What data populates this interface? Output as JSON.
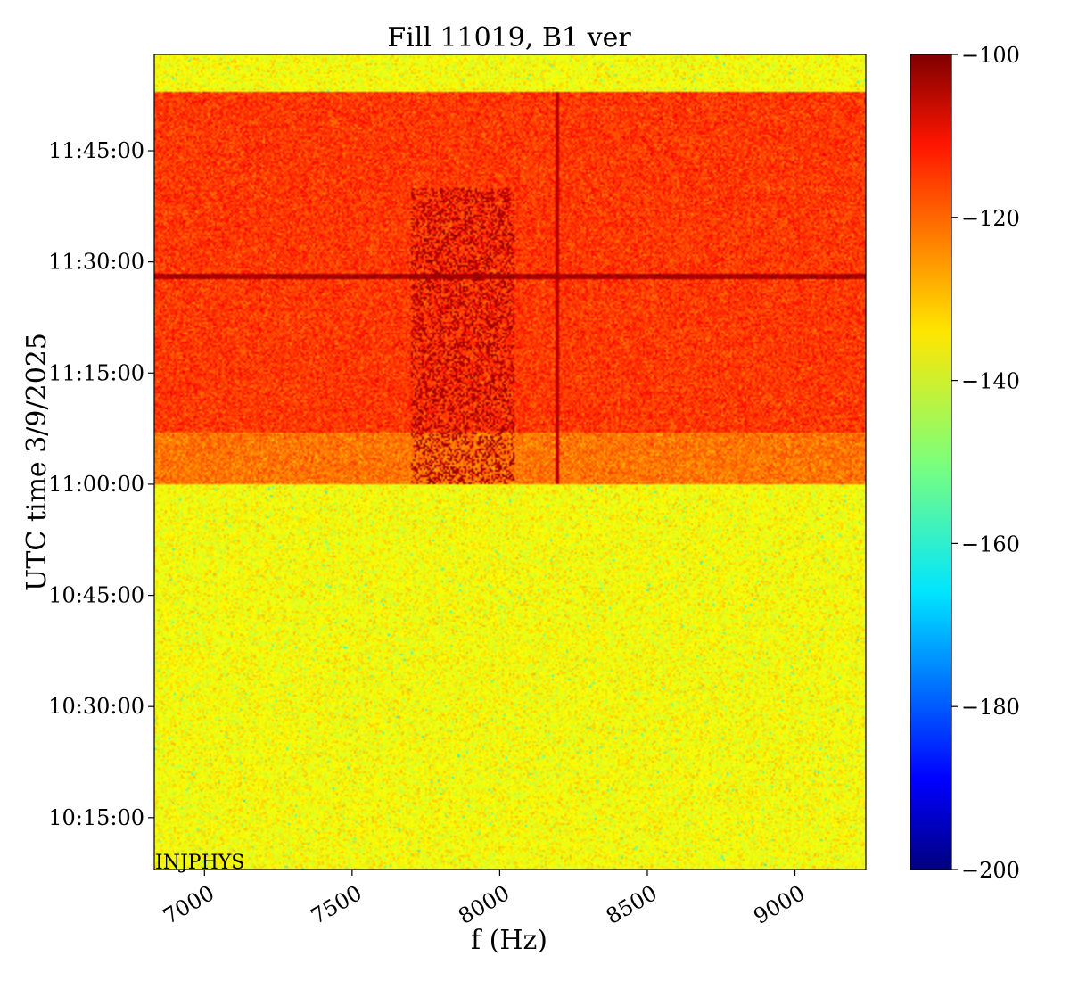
{
  "chart_data": {
    "type": "heatmap",
    "title": "Fill 11019, B1 ver",
    "xlabel": "f (Hz)",
    "ylabel": "UTC time 3/9/2025",
    "xlim": [
      6830,
      9240
    ],
    "x_ticks": [
      7000,
      7500,
      8000,
      8500,
      9000
    ],
    "x_tick_labels": [
      "7000",
      "7500",
      "8000",
      "8500",
      "9000"
    ],
    "y_range_minutes": [
      "10:08:00",
      "11:58:00"
    ],
    "y_ticks": [
      "10:15:00",
      "10:30:00",
      "10:45:00",
      "11:00:00",
      "11:15:00",
      "11:30:00",
      "11:45:00"
    ],
    "colorbar": {
      "colormap": "jet",
      "range": [
        -200,
        -100
      ],
      "ticks": [
        -100,
        -120,
        -140,
        -160,
        -180,
        -200
      ],
      "tick_labels": [
        "−100",
        "−120",
        "−140",
        "−160",
        "−180",
        "−200"
      ]
    },
    "regions": [
      {
        "time_start": "10:08:00",
        "time_end": "11:00:00",
        "level": -138,
        "description_value": "baseline"
      },
      {
        "time_start": "11:00:00",
        "time_end": "11:07:00",
        "level": -124
      },
      {
        "time_start": "11:07:00",
        "time_end": "11:53:00",
        "level": -118
      },
      {
        "time_start": "11:53:00",
        "time_end": "11:58:00",
        "level": -138
      }
    ],
    "features": [
      {
        "kind": "vertical-line",
        "frequency": 8195,
        "time_start": "11:00:00",
        "time_end": "11:53:00",
        "level": -106
      },
      {
        "kind": "horizontal-band",
        "time": "11:28:00",
        "level": -104
      },
      {
        "kind": "cluster",
        "frequency_start": 7700,
        "frequency_end": 8050,
        "time_start": "11:00:00",
        "time_end": "11:40:00",
        "level": -104
      }
    ],
    "annotation": "INJPHYS"
  }
}
